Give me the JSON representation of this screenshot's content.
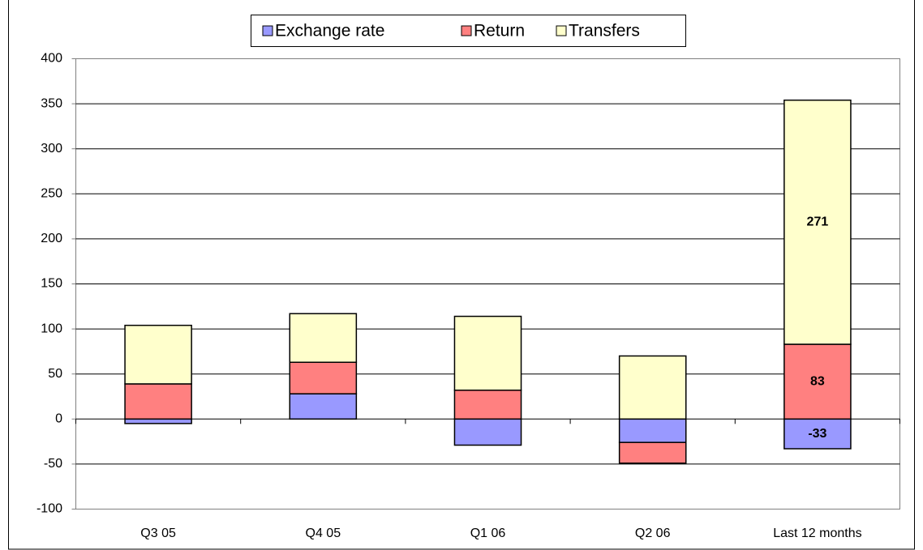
{
  "chart_data": {
    "type": "stacked_bar",
    "categories": [
      "Q3 05",
      "Q4 05",
      "Q1 06",
      "Q2 06",
      "Last 12 months"
    ],
    "series": [
      {
        "name": "Exchange rate",
        "color": "#9999ff",
        "values": [
          -5,
          28,
          -29,
          -26,
          -33
        ],
        "value_labels": [
          null,
          null,
          null,
          null,
          "-33"
        ]
      },
      {
        "name": "Return",
        "color": "#ff8080",
        "values": [
          39,
          35,
          32,
          -23,
          83
        ],
        "value_labels": [
          null,
          null,
          null,
          null,
          "83"
        ]
      },
      {
        "name": "Transfers",
        "color": "#ffffcc",
        "values": [
          65,
          54,
          82,
          70,
          271
        ],
        "value_labels": [
          null,
          null,
          null,
          null,
          "271"
        ]
      }
    ],
    "ylim": [
      -100,
      400
    ],
    "yticks": [
      -100,
      -50,
      0,
      50,
      100,
      150,
      200,
      250,
      300,
      350,
      400
    ],
    "grid": true,
    "legend": "top"
  }
}
